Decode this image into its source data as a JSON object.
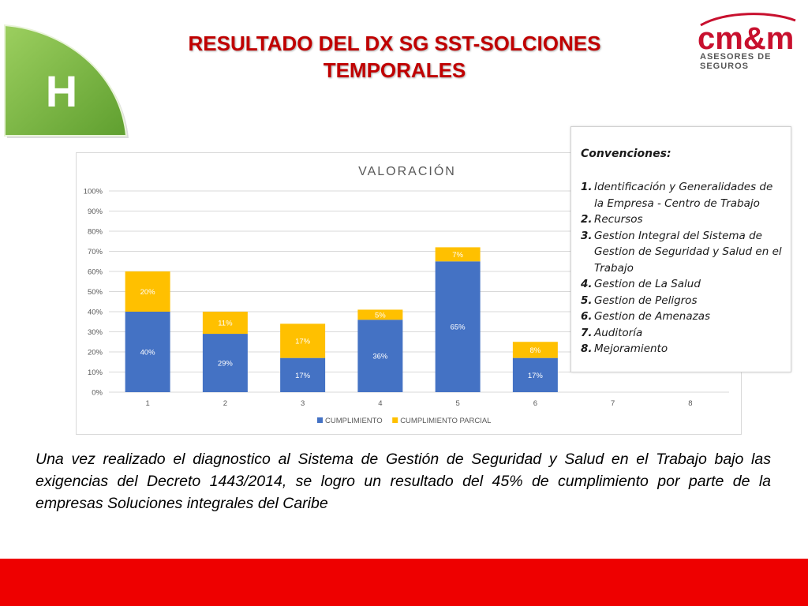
{
  "badge": {
    "letter": "H"
  },
  "title": {
    "line1": "RESULTADO DEL DX  SG SST-SOLCIONES",
    "line2": "TEMPORALES"
  },
  "logo": {
    "brand": "cm&m",
    "tagline": "ASESORES DE SEGUROS",
    "color": "#c8102e"
  },
  "legend": {
    "title": "Convenciones:",
    "items": [
      {
        "num": "1.",
        "text": "Identificación y Generalidades de la Empresa - Centro de Trabajo"
      },
      {
        "num": "2.",
        "text": "Recursos"
      },
      {
        "num": "3.",
        "text": "Gestion Integral del Sistema de Gestion de Seguridad  y Salud en el Trabajo"
      },
      {
        "num": "4.",
        "text": "Gestion de La Salud"
      },
      {
        "num": "5.",
        "text": "Gestion de Peligros"
      },
      {
        "num": "6.",
        "text": "Gestion de Amenazas"
      },
      {
        "num": "7.",
        "text": "Auditoría"
      },
      {
        "num": "8.",
        "text": "Mejoramiento"
      }
    ]
  },
  "chart_data": {
    "type": "bar",
    "stacked": true,
    "title": "VALORACIÓN",
    "categories": [
      "1",
      "2",
      "3",
      "4",
      "5",
      "6",
      "7",
      "8"
    ],
    "series": [
      {
        "name": "CUMPLIMIENTO",
        "color": "#4472c4",
        "values": [
          40,
          29,
          17,
          36,
          65,
          17,
          0,
          0
        ],
        "labels": [
          "40%",
          "29%",
          "17%",
          "36%",
          "65%",
          "17%",
          "",
          ""
        ]
      },
      {
        "name": "CUMPLIMIENTO PARCIAL",
        "color": "#ffc000",
        "values": [
          20,
          11,
          17,
          5,
          7,
          8,
          0,
          0
        ],
        "labels": [
          "20%",
          "11%",
          "17%",
          "5%",
          "7%",
          "8%",
          "",
          ""
        ]
      }
    ],
    "ylim": [
      0,
      100
    ],
    "yticks": [
      "0%",
      "10%",
      "20%",
      "30%",
      "40%",
      "50%",
      "60%",
      "70%",
      "80%",
      "90%",
      "100%"
    ],
    "grid": true,
    "legend_position": "bottom"
  },
  "body": {
    "text": "Una vez realizado el diagnostico al Sistema de Gestión de Seguridad y Salud en el Trabajo bajo las exigencias del Decreto 1443/2014, se logro  un resultado del 45% de cumplimiento por parte de la empresas Soluciones integrales  del Caribe"
  },
  "colors": {
    "title": "#c00000",
    "footer": "#ee0000",
    "badge_green": "#7ab648"
  }
}
